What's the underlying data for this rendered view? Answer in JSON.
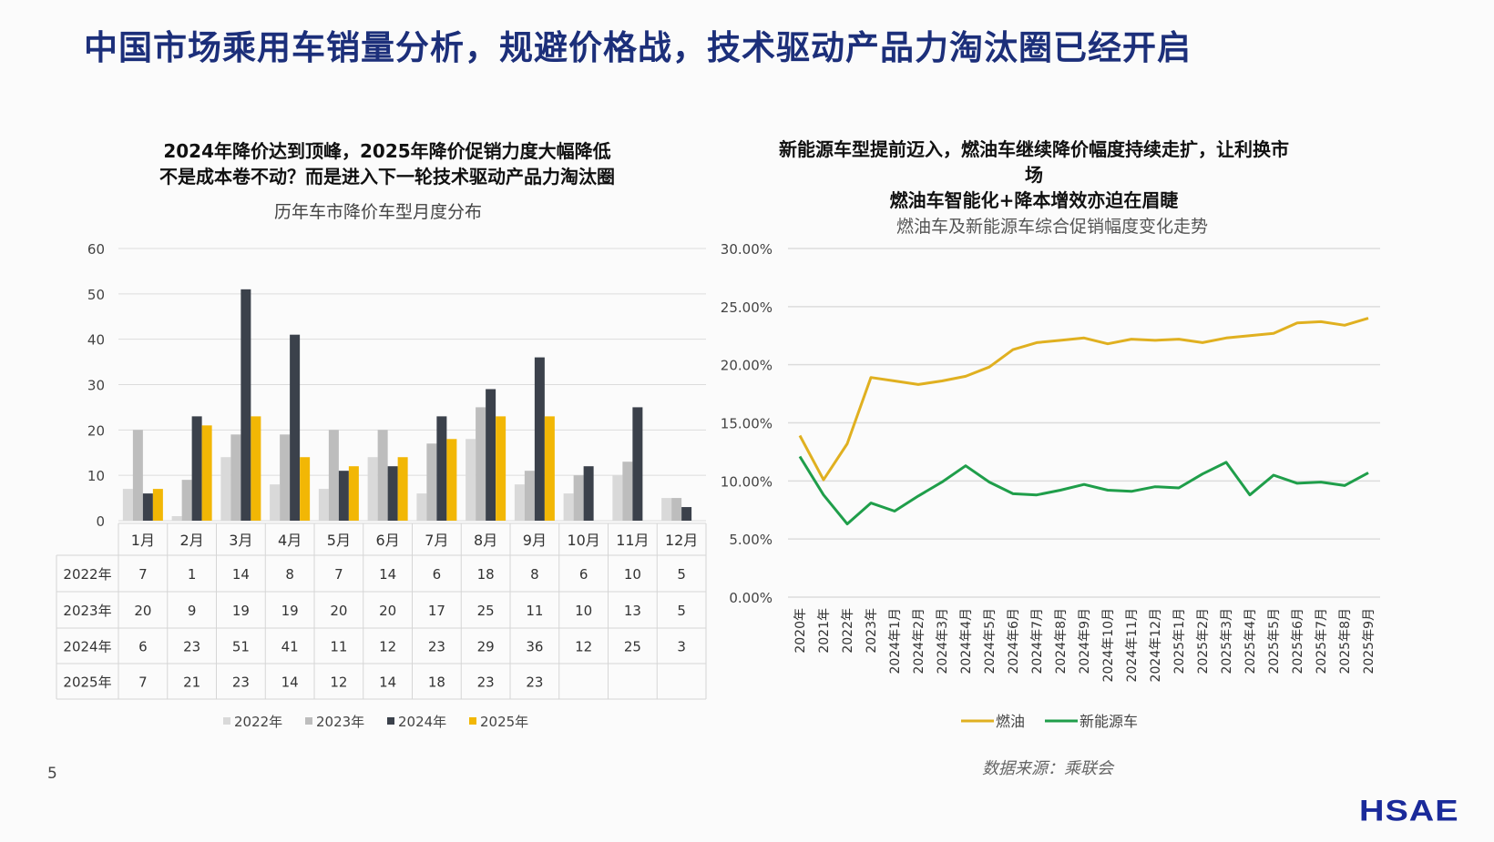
{
  "title": "中国市场乘用车销量分析，规避价格战，技术驱动产品力淘汰圈已经开启",
  "page_number": "5",
  "source": "数据来源：乘联会",
  "logo": "HSAE",
  "left_panel": {
    "heading_line1": "2024年降价达到顶峰，2025年降价促销力度大幅降低",
    "heading_line2": "不是成本卷不动？而是进入下一轮技术驱动产品力淘汰圈"
  },
  "right_panel": {
    "heading_line1": "新能源车型提前迈入，燃油车继续降价幅度持续走扩，让利换市",
    "heading_line2": "场",
    "heading_line3": "燃油车智能化+降本增效亦迫在眉睫"
  },
  "chart_data": [
    {
      "type": "bar",
      "title": "历年车市降价车型月度分布",
      "categories": [
        "1月",
        "2月",
        "3月",
        "4月",
        "5月",
        "6月",
        "7月",
        "8月",
        "9月",
        "10月",
        "11月",
        "12月"
      ],
      "ylim": [
        0,
        60
      ],
      "yticks": [
        0,
        10,
        20,
        30,
        40,
        50,
        60
      ],
      "grid": true,
      "legend": "bottom",
      "data_table": true,
      "series": [
        {
          "name": "2022年",
          "color": "#d9d9d9",
          "values": [
            7,
            1,
            14,
            8,
            7,
            14,
            6,
            18,
            8,
            6,
            10,
            5
          ]
        },
        {
          "name": "2023年",
          "color": "#bdbdbd",
          "values": [
            20,
            9,
            19,
            19,
            20,
            20,
            17,
            25,
            11,
            10,
            13,
            5
          ]
        },
        {
          "name": "2024年",
          "color": "#3b414b",
          "values": [
            6,
            23,
            51,
            41,
            11,
            12,
            23,
            29,
            36,
            12,
            25,
            3
          ]
        },
        {
          "name": "2025年",
          "color": "#f2b705",
          "values": [
            7,
            21,
            23,
            14,
            12,
            14,
            18,
            23,
            23,
            null,
            null,
            null
          ]
        }
      ]
    },
    {
      "type": "line",
      "title": "燃油车及新能源车综合促销幅度变化走势",
      "categories": [
        "2020年",
        "2021年",
        "2022年",
        "2023年",
        "2024年1月",
        "2024年2月",
        "2024年3月",
        "2024年4月",
        "2024年5月",
        "2024年6月",
        "2024年7月",
        "2024年8月",
        "2024年9月",
        "2024年10月",
        "2024年11月",
        "2024年12月",
        "2025年1月",
        "2025年2月",
        "2025年3月",
        "2025年4月",
        "2025年5月",
        "2025年6月",
        "2025年7月",
        "2025年8月",
        "2025年9月"
      ],
      "ylim": [
        0,
        30
      ],
      "yticks": [
        "0.00%",
        "5.00%",
        "10.00%",
        "15.00%",
        "20.00%",
        "25.00%",
        "30.00%"
      ],
      "grid": true,
      "legend": "bottom",
      "series": [
        {
          "name": "燃油",
          "color": "#e0b020",
          "values": [
            13.9,
            10.1,
            13.2,
            18.9,
            18.6,
            18.3,
            18.6,
            19.0,
            19.8,
            21.3,
            21.9,
            22.1,
            22.3,
            21.8,
            22.2,
            22.1,
            22.2,
            21.9,
            22.3,
            22.5,
            22.7,
            23.6,
            23.7,
            23.4,
            24.0
          ]
        },
        {
          "name": "新能源车",
          "color": "#1f9e4a",
          "values": [
            12.1,
            8.8,
            6.3,
            8.1,
            7.4,
            8.7,
            9.9,
            11.3,
            9.9,
            8.9,
            8.8,
            9.2,
            9.7,
            9.2,
            9.1,
            9.5,
            9.4,
            10.6,
            11.6,
            8.8,
            10.5,
            9.8,
            9.9,
            9.6,
            10.7
          ]
        }
      ]
    }
  ]
}
